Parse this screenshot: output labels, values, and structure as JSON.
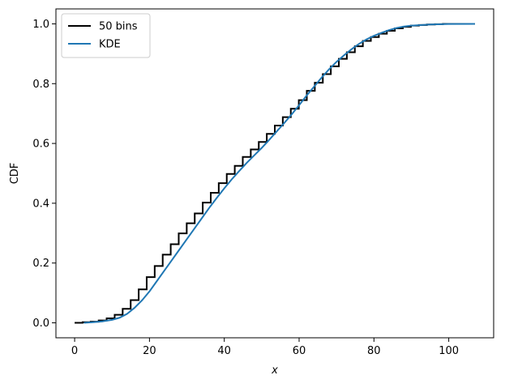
{
  "chart_data": {
    "type": "line",
    "title": "",
    "xlabel": "x",
    "ylabel": "CDF",
    "xlim": [
      -5,
      112
    ],
    "ylim": [
      -0.05,
      1.05
    ],
    "xticks": [
      0,
      20,
      40,
      60,
      80,
      100
    ],
    "xtick_labels": [
      "0",
      "20",
      "40",
      "60",
      "80",
      "100"
    ],
    "yticks": [
      0.0,
      0.2,
      0.4,
      0.6,
      0.8,
      1.0
    ],
    "ytick_labels": [
      "0.0",
      "0.2",
      "0.4",
      "0.6",
      "0.8",
      "1.0"
    ],
    "grid": false,
    "legend_position": "top-left",
    "series": [
      {
        "name": "50 bins",
        "style": "step",
        "color": "#000000",
        "x": [
          0.0,
          2.14,
          4.28,
          6.42,
          8.56,
          10.7,
          12.84,
          14.98,
          17.12,
          19.26,
          21.4,
          23.54,
          25.68,
          27.82,
          29.96,
          32.1,
          34.24,
          36.38,
          38.52,
          40.66,
          42.8,
          44.94,
          47.08,
          49.22,
          51.36,
          53.5,
          55.64,
          57.78,
          59.92,
          62.06,
          64.2,
          66.34,
          68.48,
          70.62,
          72.76,
          74.9,
          77.04,
          79.18,
          81.32,
          83.46,
          85.6,
          87.74,
          89.88,
          92.02,
          94.16,
          96.3,
          98.44,
          100.58,
          102.72,
          104.86,
          107.0
        ],
        "y": [
          0.0,
          0.002,
          0.004,
          0.008,
          0.015,
          0.027,
          0.047,
          0.076,
          0.112,
          0.153,
          0.19,
          0.228,
          0.263,
          0.299,
          0.333,
          0.366,
          0.402,
          0.435,
          0.467,
          0.498,
          0.525,
          0.555,
          0.58,
          0.605,
          0.632,
          0.66,
          0.688,
          0.716,
          0.745,
          0.776,
          0.803,
          0.832,
          0.858,
          0.883,
          0.905,
          0.925,
          0.943,
          0.956,
          0.967,
          0.977,
          0.985,
          0.99,
          0.994,
          0.996,
          0.998,
          0.999,
          1.0,
          1.0,
          1.0,
          1.0,
          1.0
        ]
      },
      {
        "name": "KDE",
        "style": "line",
        "color": "#1f77b4",
        "x": [
          2.5,
          5,
          7.5,
          10,
          12,
          14,
          16,
          18,
          20,
          22,
          24,
          26,
          28,
          30,
          32,
          34,
          36,
          38,
          40,
          42,
          44,
          46,
          48,
          50,
          52,
          54,
          56,
          58,
          60,
          62,
          64,
          66,
          68,
          70,
          72,
          74,
          76,
          78,
          80,
          82,
          84,
          86,
          88,
          90,
          95,
          100,
          107
        ],
        "y": [
          0.0,
          0.002,
          0.005,
          0.01,
          0.017,
          0.03,
          0.05,
          0.075,
          0.105,
          0.14,
          0.175,
          0.21,
          0.245,
          0.28,
          0.315,
          0.35,
          0.385,
          0.418,
          0.45,
          0.48,
          0.508,
          0.535,
          0.56,
          0.585,
          0.612,
          0.64,
          0.668,
          0.697,
          0.728,
          0.76,
          0.79,
          0.82,
          0.848,
          0.873,
          0.895,
          0.915,
          0.933,
          0.948,
          0.96,
          0.97,
          0.979,
          0.986,
          0.991,
          0.994,
          0.998,
          0.9995,
          1.0
        ]
      }
    ]
  }
}
